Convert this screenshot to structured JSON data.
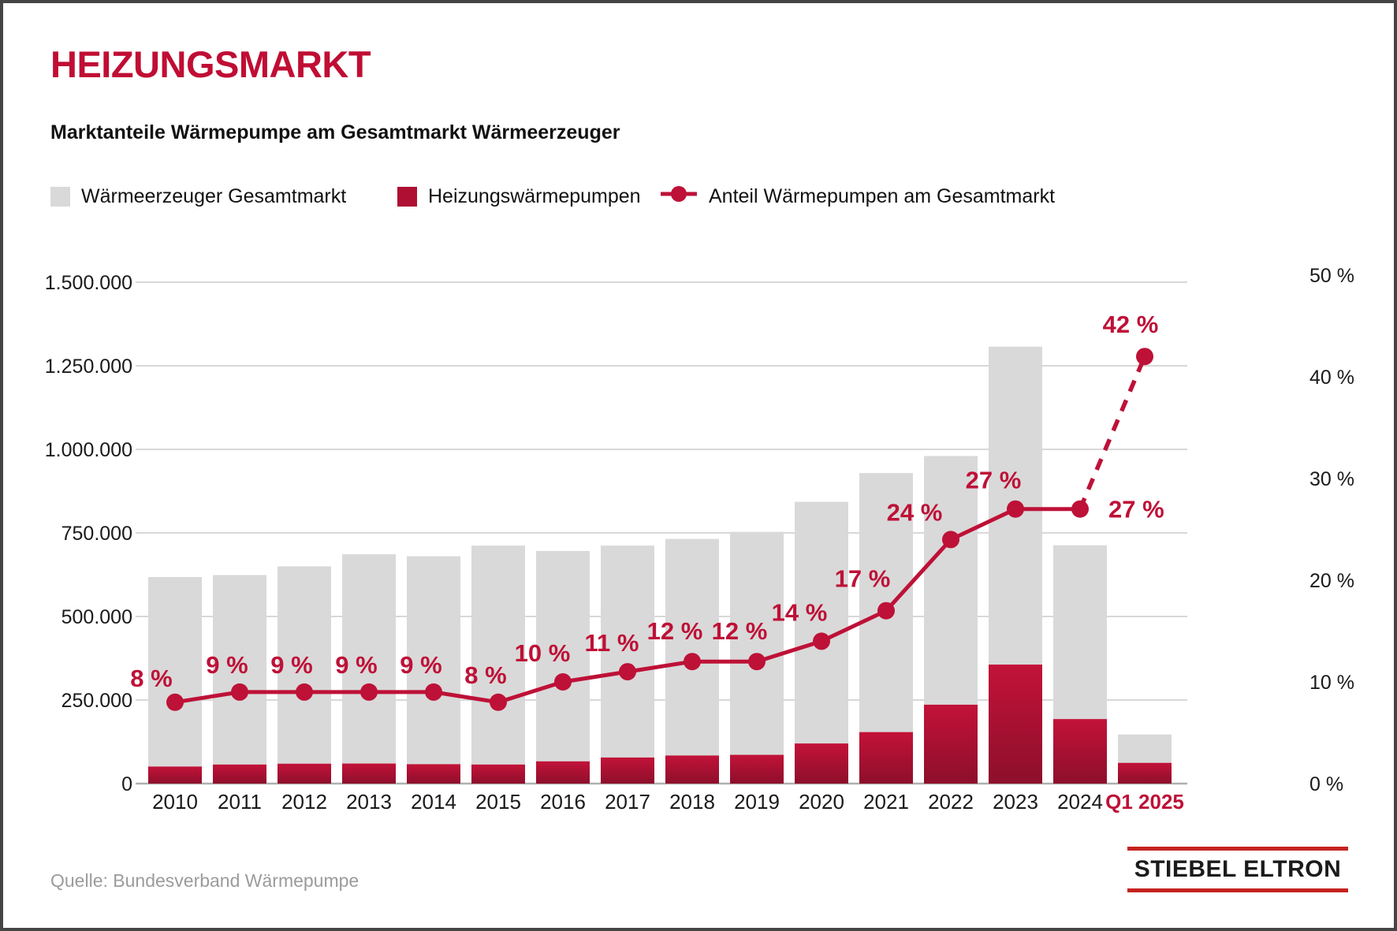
{
  "header": {
    "title": "HEIZUNGSMARKT",
    "subtitle": "Marktanteile Wärmepumpe am Gesamtmarkt Wärmeerzeuger"
  },
  "legend": [
    {
      "label": "Wärmeerzeuger Gesamtmarkt",
      "marker": "square",
      "color": "#D9D9D9"
    },
    {
      "label": "Heizungswärmepumpen",
      "marker": "square",
      "color": "#AE0F32"
    },
    {
      "label": "Anteil Wärmepumpen am Gesamtmarkt",
      "marker": "line-dot",
      "color": "#BE1137"
    }
  ],
  "chart_data": {
    "type": "bar",
    "title": "Marktanteile Wärmepumpe am Gesamtmarkt Wärmeerzeuger",
    "categories": [
      "2010",
      "2011",
      "2012",
      "2013",
      "2014",
      "2015",
      "2016",
      "2017",
      "2018",
      "2019",
      "2020",
      "2021",
      "2022",
      "2023",
      "2024",
      "Q1 2025"
    ],
    "series": [
      {
        "name": "Wärmeerzeuger Gesamtmarkt",
        "type": "bar",
        "axis": "left",
        "color": "#D9D9D9",
        "values": [
          618000,
          624000,
          650000,
          686000,
          680000,
          712000,
          696000,
          712000,
          732000,
          753000,
          843000,
          929000,
          980000,
          1307000,
          713000,
          147000
        ]
      },
      {
        "name": "Heizungswärmepumpen",
        "type": "bar",
        "axis": "left",
        "color_top": "#C31239",
        "color_bottom": "#8D0F2B",
        "values": [
          51000,
          57000,
          59500,
          60000,
          58000,
          57000,
          66500,
          78000,
          84000,
          86000,
          120000,
          154000,
          236000,
          356000,
          193000,
          62000
        ]
      },
      {
        "name": "Anteil Wärmepumpen am Gesamtmarkt",
        "type": "line",
        "axis": "right",
        "color": "#BE1137",
        "values": [
          8,
          9,
          9,
          9,
          9,
          8,
          10,
          11,
          12,
          12,
          14,
          17,
          24,
          27,
          27,
          42
        ],
        "labels": [
          "8 %",
          "9 %",
          "9 %",
          "9 %",
          "9 %",
          "8 %",
          "10 %",
          "11 %",
          "12 %",
          "12 %",
          "14 %",
          "17 %",
          "24 %",
          "27 %",
          "27 %",
          "42 %"
        ],
        "dashed_from_index": 14
      }
    ],
    "left_axis": {
      "min": 0,
      "max": 1500000,
      "tick_step": 250000,
      "tick_labels": [
        "0",
        "250.000",
        "500.000",
        "750.000",
        "1.000.000",
        "1.250.000",
        "1.500.000"
      ]
    },
    "right_axis": {
      "min": 0,
      "max": 50,
      "tick_step": 10,
      "tick_labels": [
        "0 %",
        "10 %",
        "20 %",
        "30 %",
        "40 %",
        "50 %"
      ]
    },
    "x_axis": {
      "highlight_index": 15,
      "highlight_color": "#BE1137",
      "label_color": "#1A1A1A"
    },
    "grid": "horizontal",
    "legend_position": "top"
  },
  "footer": {
    "source": "Quelle: Bundesverband Wärmepumpe",
    "logo": "STIEBEL ELTRON"
  }
}
